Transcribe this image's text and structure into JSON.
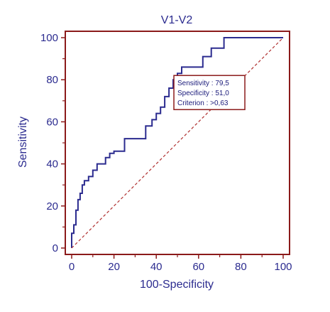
{
  "chart_data": {
    "type": "line",
    "title": "V1-V2",
    "xlabel": "100-Specificity",
    "ylabel": "Sensitivity",
    "xlim": [
      0,
      100
    ],
    "ylim": [
      0,
      100
    ],
    "xticks": [
      "0",
      "20",
      "40",
      "60",
      "80",
      "100"
    ],
    "yticks": [
      "0",
      "20",
      "40",
      "60",
      "80",
      "100"
    ],
    "grid": false,
    "legend": "none",
    "series": [
      {
        "role": "roc-curve",
        "color": "#2b2b8f",
        "x": [
          0,
          0,
          1,
          1,
          2,
          2,
          3,
          3,
          4,
          4,
          5,
          5,
          6,
          6,
          8,
          8,
          10,
          10,
          12,
          12,
          16,
          16,
          18,
          18,
          20,
          20,
          25,
          25,
          35,
          35,
          38,
          38,
          40,
          40,
          42,
          42,
          44,
          44,
          46,
          46,
          48,
          48,
          50,
          50,
          52,
          52,
          62,
          62,
          66,
          66,
          72,
          72,
          100
        ],
        "y": [
          0,
          7,
          7,
          11,
          11,
          18,
          18,
          23,
          23,
          26,
          26,
          30,
          30,
          32,
          32,
          34,
          34,
          37,
          37,
          40,
          40,
          43,
          43,
          45,
          45,
          46,
          46,
          52,
          52,
          58,
          58,
          61,
          61,
          64,
          64,
          67,
          67,
          72,
          72,
          76,
          76,
          80,
          80,
          83,
          83,
          86,
          86,
          91,
          91,
          95,
          95,
          100,
          100
        ]
      },
      {
        "role": "reference-diagonal",
        "color": "#b03030",
        "dashed": true,
        "x": [
          0,
          100
        ],
        "y": [
          0,
          100
        ]
      }
    ],
    "annotation": {
      "lines": [
        "Sensitivity : 79,5",
        "Specificity : 51,0",
        "Criterion : >0,63"
      ],
      "point": [
        49,
        80
      ],
      "border_color": "#8b1a1a"
    },
    "colors": {
      "axis": "#8b1a1a",
      "text": "#2b2b8f"
    }
  }
}
